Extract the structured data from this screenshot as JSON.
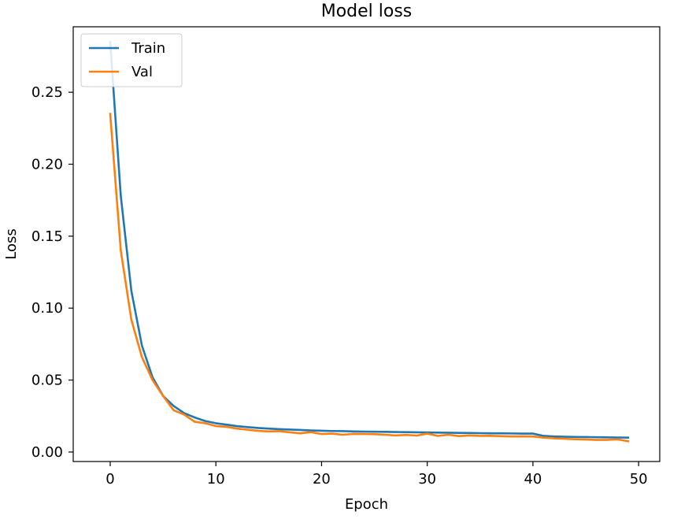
{
  "chart_data": {
    "type": "line",
    "title": "Model loss",
    "xlabel": "Epoch",
    "ylabel": "Loss",
    "xlim": [
      -3.5,
      52.0
    ],
    "ylim": [
      -0.0066,
      0.2955
    ],
    "xticks": [
      0,
      10,
      20,
      30,
      40,
      50
    ],
    "xtick_labels": [
      "0",
      "10",
      "20",
      "30",
      "40",
      "50"
    ],
    "yticks": [
      0.0,
      0.05,
      0.1,
      0.15,
      0.2,
      0.25
    ],
    "ytick_labels": [
      "0.00",
      "0.05",
      "0.10",
      "0.15",
      "0.20",
      "0.25"
    ],
    "grid": false,
    "legend_position": "top-left",
    "x": [
      0,
      1,
      2,
      3,
      4,
      5,
      6,
      7,
      8,
      9,
      10,
      11,
      12,
      13,
      14,
      15,
      16,
      17,
      18,
      19,
      20,
      21,
      22,
      23,
      24,
      25,
      26,
      27,
      28,
      29,
      30,
      31,
      32,
      33,
      34,
      35,
      36,
      37,
      38,
      39,
      40,
      41,
      42,
      43,
      44,
      45,
      46,
      47,
      48,
      49
    ],
    "series": [
      {
        "name": "Train",
        "color": "#1f77b4",
        "values": [
          0.285,
          0.178,
          0.112,
          0.074,
          0.052,
          0.039,
          0.032,
          0.027,
          0.024,
          0.0215,
          0.02,
          0.019,
          0.018,
          0.0173,
          0.0167,
          0.0163,
          0.0159,
          0.0156,
          0.0153,
          0.015,
          0.0148,
          0.0146,
          0.0145,
          0.0143,
          0.0142,
          0.0141,
          0.014,
          0.0139,
          0.0138,
          0.0137,
          0.0136,
          0.0135,
          0.0134,
          0.0133,
          0.0132,
          0.0131,
          0.013,
          0.013,
          0.0129,
          0.0128,
          0.0128,
          0.0112,
          0.0108,
          0.0106,
          0.0105,
          0.0104,
          0.0103,
          0.0102,
          0.0101,
          0.01
        ]
      },
      {
        "name": "Val",
        "color": "#ff7f0e",
        "values": [
          0.235,
          0.14,
          0.092,
          0.066,
          0.05,
          0.039,
          0.029,
          0.026,
          0.021,
          0.02,
          0.018,
          0.0175,
          0.0163,
          0.0155,
          0.0147,
          0.0143,
          0.0145,
          0.0137,
          0.013,
          0.0138,
          0.0125,
          0.0128,
          0.012,
          0.0126,
          0.0125,
          0.0124,
          0.012,
          0.0115,
          0.0119,
          0.0114,
          0.0128,
          0.0112,
          0.012,
          0.0111,
          0.0115,
          0.0112,
          0.0113,
          0.011,
          0.0108,
          0.0109,
          0.0108,
          0.01,
          0.0095,
          0.0092,
          0.0089,
          0.0087,
          0.0084,
          0.0084,
          0.0088,
          0.0075
        ]
      }
    ]
  }
}
